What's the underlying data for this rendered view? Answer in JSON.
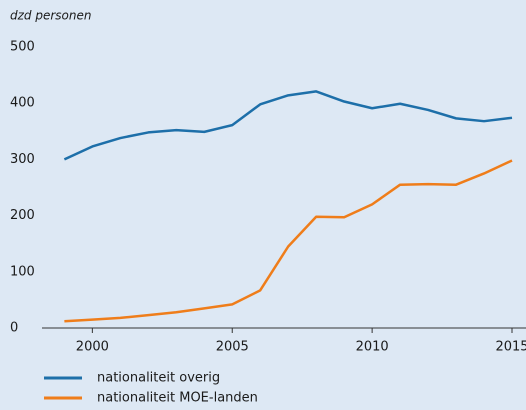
{
  "chart_data": {
    "type": "line",
    "y_label": "dzd personen",
    "x": [
      1999,
      2000,
      2001,
      2002,
      2003,
      2004,
      2005,
      2006,
      2007,
      2008,
      2009,
      2010,
      2011,
      2012,
      2013,
      2014,
      2015
    ],
    "series": [
      {
        "name": "nationaliteit overig",
        "color": "#1d6fa9",
        "values": [
          300,
          323,
          338,
          348,
          352,
          349,
          361,
          398,
          414,
          421,
          403,
          391,
          399,
          388,
          373,
          368,
          374
        ]
      },
      {
        "name": "nationaliteit MOE-landen",
        "color": "#ef7d1a",
        "values": [
          12,
          15,
          18,
          23,
          28,
          35,
          42,
          67,
          145,
          198,
          197,
          220,
          255,
          256,
          255,
          275,
          298
        ]
      }
    ],
    "xlim": [
      1998.2,
      2015.5
    ],
    "xticks": [
      2000,
      2005,
      2010,
      2015
    ],
    "ylim": [
      0,
      500
    ],
    "yticks": [
      0,
      100,
      200,
      300,
      400,
      500
    ],
    "grid": false,
    "legend": "bottom"
  }
}
